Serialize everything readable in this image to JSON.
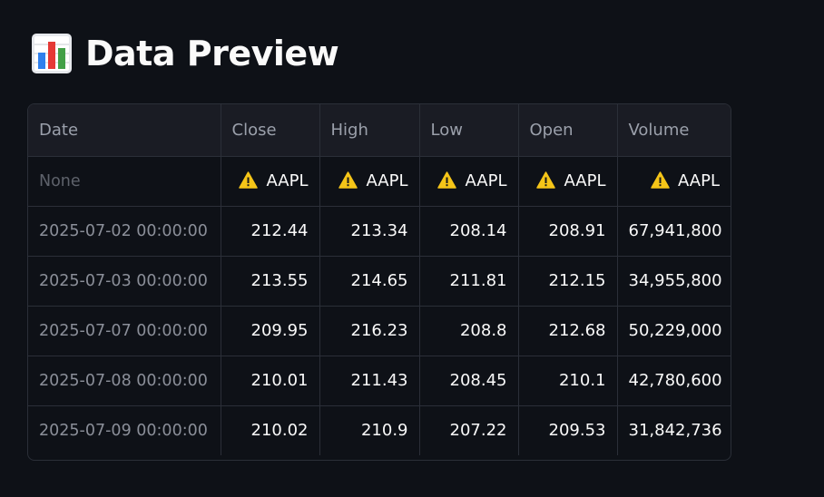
{
  "header": {
    "title": "Data Preview",
    "icon": "bar-chart-icon"
  },
  "table": {
    "columns": [
      "Date",
      "Close",
      "High",
      "Low",
      "Open",
      "Volume"
    ],
    "subheader": {
      "index": "None",
      "tickers": [
        "AAPL",
        "AAPL",
        "AAPL",
        "AAPL",
        "AAPL"
      ],
      "icon": "warning-icon"
    },
    "rows": [
      {
        "date": "2025-07-02 00:00:00",
        "close": "212.44",
        "high": "213.34",
        "low": "208.14",
        "open": "208.91",
        "volume": "67,941,800"
      },
      {
        "date": "2025-07-03 00:00:00",
        "close": "213.55",
        "high": "214.65",
        "low": "211.81",
        "open": "212.15",
        "volume": "34,955,800"
      },
      {
        "date": "2025-07-07 00:00:00",
        "close": "209.95",
        "high": "216.23",
        "low": "208.8",
        "open": "212.68",
        "volume": "50,229,000"
      },
      {
        "date": "2025-07-08 00:00:00",
        "close": "210.01",
        "high": "211.43",
        "low": "208.45",
        "open": "210.1",
        "volume": "42,780,600"
      },
      {
        "date": "2025-07-09 00:00:00",
        "close": "210.02",
        "high": "210.9",
        "low": "207.22",
        "open": "209.53",
        "volume": "31,842,736"
      }
    ]
  },
  "colors": {
    "background": "#0e1117",
    "header_bg": "#1a1c24",
    "border": "#2b2f38",
    "warning": "#f5c518"
  }
}
